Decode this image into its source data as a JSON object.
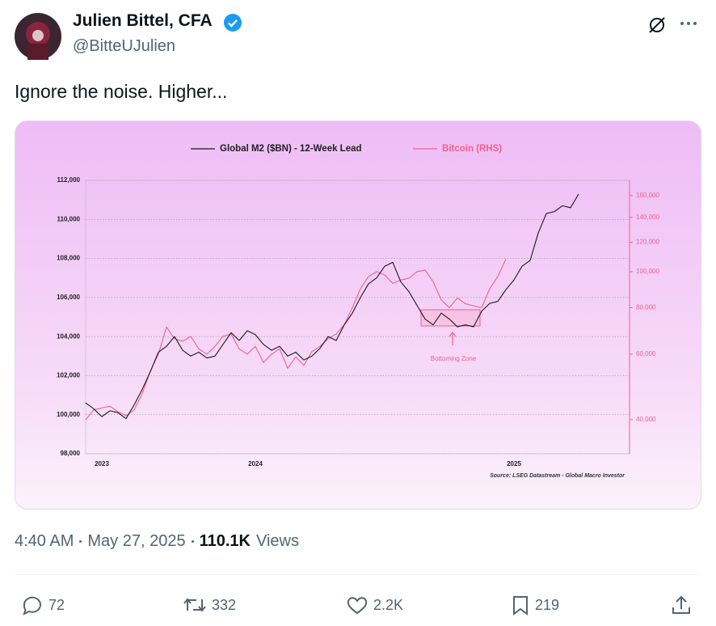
{
  "author": {
    "name": "Julien Bittel, CFA",
    "handle": "@BitteUJulien"
  },
  "text": "Ignore the noise. Higher...",
  "chart_data": {
    "type": "line",
    "legend": "top",
    "grid": true,
    "categories": [
      null,
      null,
      "2023",
      null,
      null,
      null,
      null,
      null,
      null,
      null,
      null,
      null,
      null,
      null,
      null,
      null,
      null,
      null,
      null,
      null,
      null,
      "2024",
      null,
      null,
      null,
      null,
      null,
      null,
      null,
      null,
      null,
      null,
      null,
      null,
      null,
      null,
      null,
      null,
      null,
      null,
      null,
      null,
      null,
      null,
      null,
      null,
      null,
      null,
      null,
      null,
      null,
      null,
      null,
      "2025",
      null,
      null,
      null,
      null,
      null,
      null,
      null,
      null
    ],
    "series": [
      {
        "name": "Global M2 ($BN) - 12-Week Lead",
        "color": "#1a1a1a",
        "axis": "y",
        "values": [
          100600,
          100300,
          99900,
          100200,
          100100,
          99800,
          100500,
          101300,
          102200,
          103200,
          103500,
          104000,
          103300,
          103000,
          103200,
          102900,
          103000,
          103600,
          104200,
          103800,
          104300,
          104100,
          103600,
          103300,
          103500,
          103000,
          103200,
          102800,
          103000,
          103400,
          104000,
          103800,
          104600,
          105200,
          106000,
          106700,
          107000,
          107600,
          107800,
          106800,
          106300,
          105600,
          104900,
          104600,
          105200,
          104900,
          104500,
          104600,
          104500,
          105300,
          105700,
          105800,
          106400,
          106900,
          107600,
          107900,
          109300,
          110300,
          110400,
          110700,
          110600,
          111300
        ]
      },
      {
        "name": "Bitcoin (RHS)",
        "color": "#f0608c",
        "axis": "y2",
        "values": [
          40000,
          42500,
          43000,
          43500,
          42000,
          41000,
          42500,
          47000,
          54000,
          60000,
          71000,
          66000,
          65000,
          67000,
          62000,
          60000,
          63000,
          67000,
          68000,
          62000,
          60000,
          63000,
          57000,
          60000,
          62000,
          55000,
          59000,
          56000,
          61000,
          63000,
          66000,
          68000,
          72000,
          80000,
          90000,
          97000,
          100000,
          98000,
          93000,
          95000,
          96000,
          100000,
          101000,
          94000,
          84000,
          80000,
          85000,
          82000,
          81000,
          80000,
          90000,
          97000,
          108000,
          null,
          null,
          null,
          null,
          null,
          null,
          null,
          null,
          null
        ]
      }
    ],
    "ylim": [
      98000,
      112000
    ],
    "yticks": [
      {
        "value": 98000,
        "label": "98,000"
      },
      {
        "value": 100000,
        "label": "100,000"
      },
      {
        "value": 102000,
        "label": "102,000"
      },
      {
        "value": 104000,
        "label": "104,000"
      },
      {
        "value": 106000,
        "label": "106,000"
      },
      {
        "value": 108000,
        "label": "108,000"
      },
      {
        "value": 110000,
        "label": "110,000"
      },
      {
        "value": 112000,
        "label": "112,000"
      }
    ],
    "y2scale": "log",
    "y2lim": [
      32400,
      176000
    ],
    "y2ticks": [
      {
        "value": 40000,
        "label": "40,000"
      },
      {
        "value": 60000,
        "label": "60,000"
      },
      {
        "value": 80000,
        "label": "80,000"
      },
      {
        "value": 100000,
        "label": "100,000"
      },
      {
        "value": 120000,
        "label": "120,000"
      },
      {
        "value": 140000,
        "label": "140,000"
      },
      {
        "value": 160000,
        "label": "160,000"
      }
    ],
    "annotation": "Bottoming Zone",
    "source": "Source: LSEG Datastream - Global Macro Investor"
  },
  "meta": {
    "time": "4:40 AM",
    "date": "May 27, 2025",
    "views": "110.1K",
    "views_label": "Views"
  },
  "actions": {
    "replies": "72",
    "reposts": "332",
    "likes": "2.2K",
    "bookmarks": "219"
  }
}
